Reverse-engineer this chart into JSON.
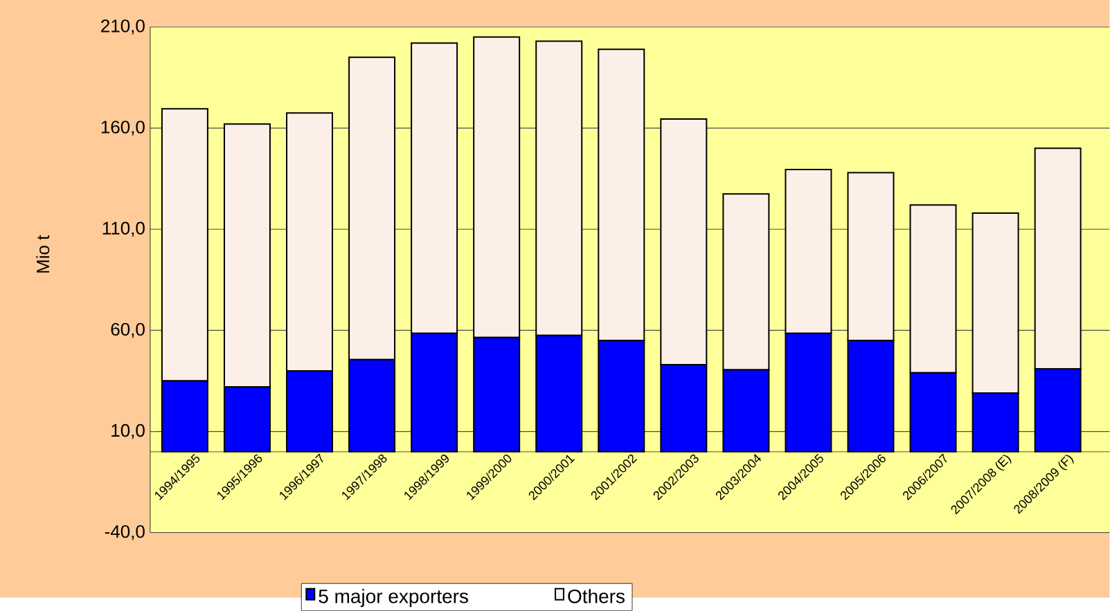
{
  "chart_data": {
    "type": "bar",
    "stacked": true,
    "ylabel": "Mio t",
    "categories": [
      "1994/1995",
      "1995/1996",
      "1996/1997",
      "1997/1998",
      "1998/1999",
      "1999/2000",
      "2000/2001",
      "2001/2002",
      "2002/2003",
      "2003/2004",
      "2004/2005",
      "2005/2006",
      "2006/2007",
      "2007/2008 (E)",
      "2008/2009 (F)"
    ],
    "series": [
      {
        "name": "5 major exporters",
        "color": "#0000ff",
        "values": [
          35,
          32,
          40,
          45.5,
          58.5,
          56.5,
          57.5,
          55,
          43,
          40.5,
          58.5,
          55,
          39,
          29,
          41
        ]
      },
      {
        "name": "Others",
        "color": "#fbefe8",
        "values": [
          134.5,
          130,
          127.5,
          149.5,
          143.5,
          148.5,
          145.5,
          144,
          121.5,
          87,
          81,
          83,
          83,
          89,
          109
        ]
      }
    ],
    "ylim": [
      -40,
      210
    ],
    "yticks": [
      {
        "value": -40,
        "label": "-40,0"
      },
      {
        "value": 10,
        "label": "10,0"
      },
      {
        "value": 60,
        "label": "60,0"
      },
      {
        "value": 110,
        "label": "110,0"
      },
      {
        "value": 160,
        "label": "160,0"
      },
      {
        "value": 210,
        "label": "210,0"
      }
    ],
    "grid": "y",
    "legend": "bottom"
  }
}
